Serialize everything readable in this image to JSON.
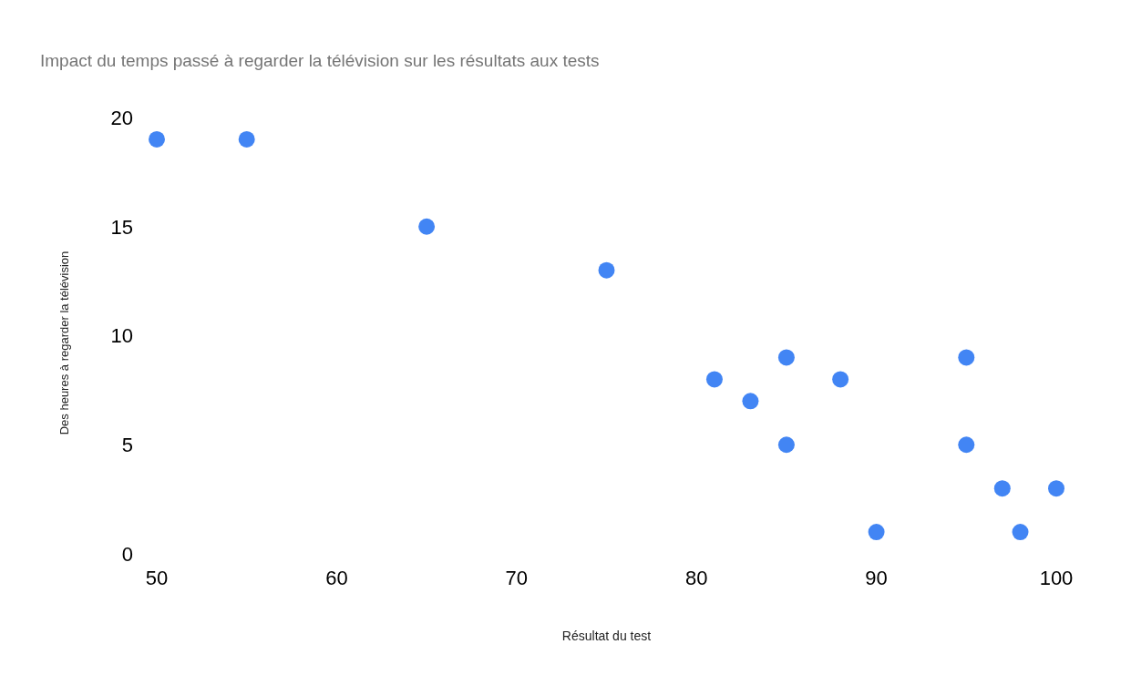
{
  "chart_data": {
    "type": "scatter",
    "title": "Impact du temps passé à regarder la télévision sur les résultats aux tests",
    "xlabel": "Résultat du test",
    "ylabel": "Des heures à regarder la télévision",
    "x": [
      50,
      55,
      65,
      75,
      81,
      83,
      85,
      85,
      88,
      90,
      95,
      95,
      97,
      98,
      100
    ],
    "values": [
      19,
      19,
      15,
      13,
      8,
      7,
      9,
      5,
      8,
      1,
      9,
      5,
      3,
      1,
      3
    ],
    "color": "#4285f4",
    "marker": "circle",
    "xlim": [
      50,
      100
    ],
    "xticks": [
      50,
      60,
      70,
      80,
      90,
      100
    ],
    "ylim": [
      0,
      20
    ],
    "yticks": [
      0,
      5,
      10,
      15,
      20
    ]
  }
}
